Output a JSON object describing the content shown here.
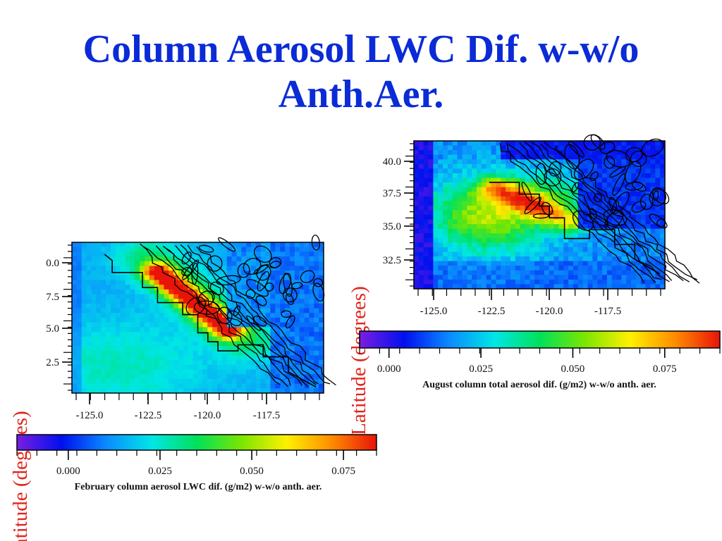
{
  "slide": {
    "title": "Column Aerosol LWC Dif. w-w/o Anth.Aer."
  },
  "chart_data": [
    {
      "type": "heatmap",
      "title": "",
      "ylabel": "Latitude (degrees)",
      "xlabel": "",
      "x_ticks": [
        "-125.0",
        "-122.5",
        "-120.0",
        "-117.5"
      ],
      "y_ticks": [
        "0.0",
        "7.5",
        "5.0",
        "2.5"
      ],
      "colorbar": {
        "ticks": [
          "0.000",
          "0.025",
          "0.050",
          "0.075"
        ],
        "label": "February column aerosol LWC dif. (g/m2) w-w/o anth. aer.",
        "range": [
          -0.014,
          0.084
        ],
        "colormap": [
          "#7a1ee0",
          "#0010ee",
          "#0a8cff",
          "#00e6e6",
          "#00e15a",
          "#7be600",
          "#fff000",
          "#ff8c00",
          "#e8140a"
        ]
      },
      "overlay": "terrain contour lines (black)",
      "pattern": "maximum along the Central Valley, moderate values offshore to the southwest"
    },
    {
      "type": "heatmap",
      "title": "",
      "ylabel": "Latitude (degrees)",
      "xlabel": "",
      "x_ticks": [
        "-125.0",
        "-122.5",
        "-120.0",
        "-117.5"
      ],
      "y_ticks": [
        "40.0",
        "37.5",
        "35.0",
        "32.5"
      ],
      "colorbar": {
        "ticks": [
          "0.000",
          "0.025",
          "0.050",
          "0.075"
        ],
        "label": "August column total aerosol dif. (g/m2) w-w/o anth. aer.",
        "range": [
          -0.008,
          0.09
        ],
        "colormap": [
          "#7a1ee0",
          "#0010ee",
          "#0a8cff",
          "#00e6e6",
          "#00e15a",
          "#7be600",
          "#fff000",
          "#ff8c00",
          "#e8140a"
        ]
      },
      "overlay": "terrain contour lines (black)",
      "pattern": "maximum over the ocean west of the Bay Area and along the Central Valley"
    }
  ]
}
